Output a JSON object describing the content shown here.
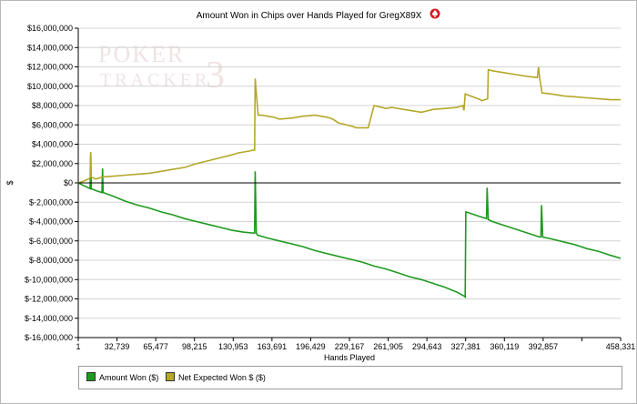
{
  "window": {
    "logo_icon": "poker-tracker-spade-icon",
    "watermark_icon": "pokertracker3-watermark-icon"
  },
  "colors": {
    "amount_won": "#1e9a1e",
    "net_expected": "#b4a82a",
    "zero_line": "#000000",
    "grid": "#d4d4d4",
    "axis": "#000000",
    "logo_red": "#d32020"
  },
  "chart_data": {
    "type": "line",
    "title": "Amount Won in Chips over Hands Played for GregX89X",
    "xlabel": "Hands Played",
    "ylabel": "$",
    "xlim": [
      1,
      458331
    ],
    "ylim": [
      -16000000,
      16000000
    ],
    "x_ticks": [
      1,
      32739,
      65477,
      98215,
      130953,
      163691,
      196429,
      229167,
      261905,
      294643,
      327381,
      360119,
      392857,
      425595,
      458331
    ],
    "x_tick_labels": [
      "1",
      "32,739",
      "65,477",
      "98,215",
      "130,953",
      "163,691",
      "196,429",
      "229,167",
      "261,905",
      "294,643",
      "327,381",
      "360,119",
      "392,857",
      "",
      "458,331"
    ],
    "y_ticks": [
      16000000,
      14000000,
      12000000,
      10000000,
      8000000,
      6000000,
      4000000,
      2000000,
      0,
      -2000000,
      -4000000,
      -6000000,
      -8000000,
      -10000000,
      -12000000,
      -14000000,
      -16000000
    ],
    "y_tick_labels": [
      "$16,000,000",
      "$14,000,000",
      "$12,000,000",
      "$10,000,000",
      "$8,000,000",
      "$6,000,000",
      "$4,000,000",
      "$2,000,000",
      "$0",
      "$-2,000,000",
      "$-4,000,000",
      "$-6,000,000",
      "$-8,000,000",
      "$-10,000,000",
      "$-12,000,000",
      "$-14,000,000",
      "$-16,000,000"
    ],
    "grid": true,
    "legend_position": "bottom",
    "series": [
      {
        "name": "Amount Won ($)",
        "color": "#1e9a1e",
        "x": [
          1,
          5000,
          10000,
          10500,
          11000,
          15000,
          20000,
          20500,
          21000,
          30000,
          40000,
          50000,
          60000,
          70000,
          80000,
          90000,
          100000,
          110000,
          120000,
          130000,
          140000,
          149000,
          149500,
          150500,
          151500,
          160000,
          170000,
          180000,
          190000,
          200000,
          210000,
          220000,
          230000,
          240000,
          250000,
          260000,
          270000,
          280000,
          290000,
          300000,
          310000,
          320000,
          326000,
          327000,
          327500,
          330000,
          340000,
          345000,
          345500,
          346500,
          350000,
          360000,
          370000,
          380000,
          390000,
          391000,
          391500,
          392500,
          400000,
          410000,
          420000,
          430000,
          440000,
          450000,
          458331
        ],
        "y": [
          0,
          -300000,
          -600000,
          3000000,
          -600000,
          -800000,
          -1000000,
          1500000,
          -1000000,
          -1400000,
          -1900000,
          -2300000,
          -2600000,
          -3000000,
          -3300000,
          -3700000,
          -4000000,
          -4300000,
          -4600000,
          -4900000,
          -5100000,
          -5200000,
          1200000,
          -5200000,
          -5400000,
          -5700000,
          -6000000,
          -6300000,
          -6600000,
          -7000000,
          -7300000,
          -7600000,
          -7900000,
          -8200000,
          -8600000,
          -8900000,
          -9300000,
          -9700000,
          -10000000,
          -10400000,
          -10800000,
          -11300000,
          -11700000,
          -11800000,
          -3000000,
          -3100000,
          -3500000,
          -3700000,
          -500000,
          -3800000,
          -4000000,
          -4400000,
          -4800000,
          -5200000,
          -5600000,
          -5600000,
          -2300000,
          -5600000,
          -5800000,
          -6100000,
          -6400000,
          -6800000,
          -7100000,
          -7500000,
          -7800000
        ]
      },
      {
        "name": "Net Expected Won $ ($)",
        "color": "#b4a82a",
        "x": [
          1,
          5000,
          10000,
          10500,
          11000,
          15000,
          20000,
          30000,
          40000,
          50000,
          60000,
          70000,
          80000,
          90000,
          100000,
          110000,
          120000,
          130000,
          135000,
          140000,
          145000,
          148000,
          149000,
          149500,
          152000,
          155000,
          165000,
          170000,
          180000,
          190000,
          200000,
          210000,
          215000,
          220000,
          230000,
          235000,
          237000,
          245000,
          250000,
          260000,
          265000,
          270000,
          280000,
          290000,
          300000,
          310000,
          320000,
          325000,
          326000,
          327000,
          340000,
          341000,
          346000,
          346500,
          350000,
          360000,
          370000,
          380000,
          388000,
          389000,
          390000,
          392000,
          400000,
          410000,
          420000,
          430000,
          440000,
          450000,
          458331
        ],
        "y": [
          0,
          200000,
          500000,
          3200000,
          600000,
          400000,
          600000,
          700000,
          800000,
          900000,
          1000000,
          1200000,
          1400000,
          1600000,
          2000000,
          2300000,
          2600000,
          2900000,
          3100000,
          3200000,
          3300000,
          3400000,
          3400000,
          10800000,
          7000000,
          7000000,
          6800000,
          6600000,
          6700000,
          6900000,
          7000000,
          6800000,
          6600000,
          6200000,
          5900000,
          5700000,
          5700000,
          5700000,
          8000000,
          7700000,
          7800000,
          7700000,
          7500000,
          7300000,
          7600000,
          7700000,
          7800000,
          8000000,
          7500000,
          9200000,
          8600000,
          8500000,
          8700000,
          11700000,
          11600000,
          11400000,
          11200000,
          11000000,
          10900000,
          12000000,
          10800000,
          9300000,
          9200000,
          9000000,
          8900000,
          8800000,
          8700000,
          8600000,
          8600000
        ]
      }
    ]
  }
}
